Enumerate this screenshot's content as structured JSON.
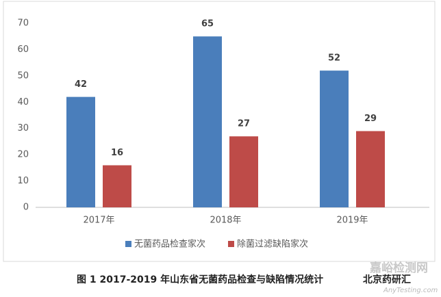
{
  "chart_data": {
    "type": "bar",
    "categories": [
      "2017年",
      "2018年",
      "2019年"
    ],
    "series": [
      {
        "name": "无菌药品检查家次",
        "color": "#4a7ebb",
        "values": [
          42,
          65,
          52
        ]
      },
      {
        "name": "除菌过滤缺陷家次",
        "color": "#be4b48",
        "values": [
          16,
          27,
          29
        ]
      }
    ],
    "ylim": [
      0,
      70
    ],
    "yticks": [
      0,
      10,
      20,
      30,
      40,
      50,
      60,
      70
    ],
    "grid": false,
    "legend": "bottom",
    "caption": "图 1   2017-2019 年山东省无菌药品检查与缺陷情况统计",
    "source": "北京药研汇",
    "watermark": "嘉峪检测网",
    "watermark_sub": "AnyTesting.com"
  }
}
